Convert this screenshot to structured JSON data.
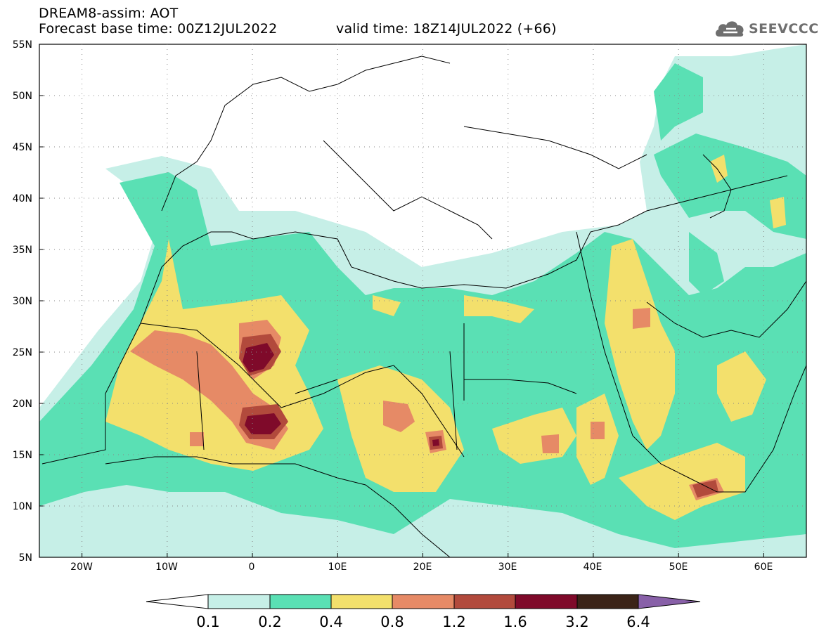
{
  "header": {
    "line1": "DREAM8-assim: AOT",
    "line2": "Forecast base time: 00Z12JUL2022",
    "line3": "valid time: 18Z14JUL2022 (+66)"
  },
  "logo": {
    "text": "SEEVCCC",
    "icon": "cloud-icon"
  },
  "map_axes": {
    "lat_labels": [
      "55N",
      "50N",
      "45N",
      "40N",
      "35N",
      "30N",
      "25N",
      "20N",
      "15N",
      "10N",
      "5N"
    ],
    "lon_labels": [
      "20W",
      "10W",
      "0",
      "10E",
      "20E",
      "30E",
      "40E",
      "50E",
      "60E"
    ],
    "lat_range": [
      5,
      55
    ],
    "lon_range": [
      -25,
      65
    ]
  },
  "colorbar": {
    "labels": [
      "0.1",
      "0.2",
      "0.4",
      "0.8",
      "1.2",
      "1.6",
      "3.2",
      "6.4"
    ],
    "colors": [
      "#ffffff",
      "#c6efe7",
      "#5ae0b4",
      "#f3e06c",
      "#e68a66",
      "#b24a3c",
      "#7f0a2a",
      "#3b2418",
      "#8860a8"
    ]
  }
}
